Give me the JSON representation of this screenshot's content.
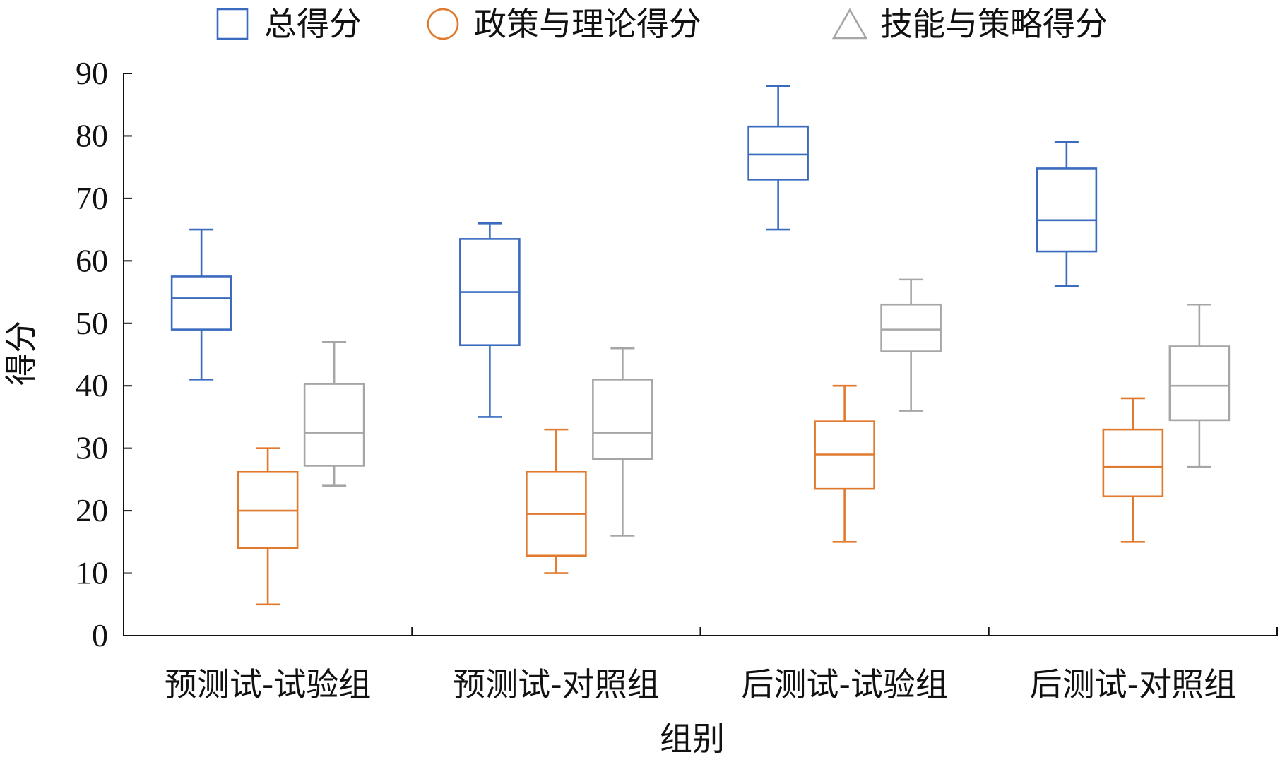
{
  "chart_data": {
    "type": "box",
    "categories": [
      "预测试-试验组",
      "预测试-对照组",
      "后测试-试验组",
      "后测试-对照组"
    ],
    "xlabel": "组别",
    "ylabel": "得分",
    "ylim": [
      0,
      90
    ],
    "yticks": [
      0,
      10,
      20,
      30,
      40,
      50,
      60,
      70,
      80,
      90
    ],
    "grid": false,
    "legend_position": "top",
    "series": [
      {
        "name": "总得分",
        "color": "#3a6bbf",
        "marker": "square",
        "boxes": [
          {
            "min": 41,
            "q1": 49,
            "median": 54,
            "q3": 57.5,
            "max": 65
          },
          {
            "min": 35,
            "q1": 46.5,
            "median": 55,
            "q3": 63.5,
            "max": 66
          },
          {
            "min": 65,
            "q1": 73,
            "median": 77,
            "q3": 81.5,
            "max": 88
          },
          {
            "min": 56,
            "q1": 61.5,
            "median": 66.5,
            "q3": 74.8,
            "max": 79
          }
        ]
      },
      {
        "name": "政策与理论得分",
        "color": "#e07a2e",
        "marker": "circle",
        "boxes": [
          {
            "min": 5,
            "q1": 14,
            "median": 20,
            "q3": 26.2,
            "max": 30
          },
          {
            "min": 10,
            "q1": 12.8,
            "median": 19.5,
            "q3": 26.2,
            "max": 33
          },
          {
            "min": 15,
            "q1": 23.5,
            "median": 29,
            "q3": 34.3,
            "max": 40
          },
          {
            "min": 15,
            "q1": 22.3,
            "median": 27,
            "q3": 33,
            "max": 38
          }
        ]
      },
      {
        "name": "技能与策略得分",
        "color": "#a6a6a6",
        "marker": "triangle",
        "boxes": [
          {
            "min": 24,
            "q1": 27.2,
            "median": 32.5,
            "q3": 40.3,
            "max": 47
          },
          {
            "min": 16,
            "q1": 28.3,
            "median": 32.5,
            "q3": 41,
            "max": 46
          },
          {
            "min": 36,
            "q1": 45.5,
            "median": 49,
            "q3": 53,
            "max": 57
          },
          {
            "min": 27,
            "q1": 34.5,
            "median": 40,
            "q3": 46.3,
            "max": 53
          }
        ]
      }
    ]
  }
}
